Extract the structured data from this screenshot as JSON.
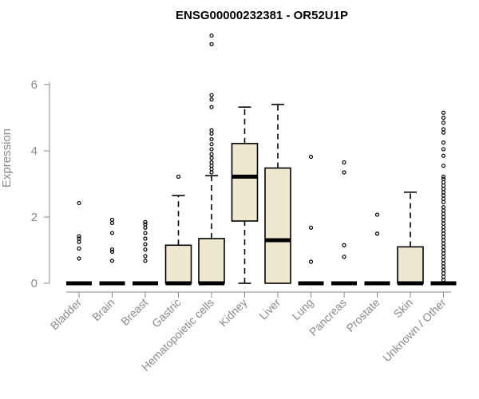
{
  "chart_data": {
    "type": "box",
    "title": "ENSG00000232381 - OR52U1P",
    "xlabel": "",
    "ylabel": "Expression",
    "ylim": [
      0,
      7.8
    ],
    "yticks": [
      "0",
      "2",
      "4",
      "6"
    ],
    "box_fill": "#efe7cf",
    "categories": [
      "Bladder",
      "Brain",
      "Breast",
      "Gastric",
      "Hematopoietic cells",
      "Kidney",
      "Liver",
      "Lung",
      "Pancreas",
      "Prostate",
      "Skin",
      "Unknown / Other"
    ],
    "boxes": [
      {
        "q1": 0,
        "median": 0,
        "q3": 0,
        "whisker_low": 0,
        "whisker_high": 0,
        "outliers": [
          0.75,
          1.05,
          1.25,
          1.35,
          1.42,
          2.42
        ]
      },
      {
        "q1": 0,
        "median": 0,
        "q3": 0,
        "whisker_low": 0,
        "whisker_high": 0,
        "outliers": [
          0.68,
          0.95,
          1.02,
          1.52,
          1.82,
          1.92
        ]
      },
      {
        "q1": 0,
        "median": 0,
        "q3": 0,
        "whisker_low": 0,
        "whisker_high": 0,
        "outliers": [
          0.68,
          0.82,
          1.02,
          1.18,
          1.35,
          1.52,
          1.68,
          1.78,
          1.85
        ]
      },
      {
        "q1": 0,
        "median": 0,
        "q3": 1.15,
        "whisker_low": 0,
        "whisker_high": 2.65,
        "outliers": [
          3.22
        ]
      },
      {
        "q1": 0,
        "median": 0,
        "q3": 1.35,
        "whisker_low": 0,
        "whisker_high": 3.25,
        "outliers": [
          3.35,
          3.45,
          3.55,
          3.65,
          3.78,
          3.9,
          4.05,
          4.2,
          4.35,
          4.52,
          4.62,
          5.32,
          5.55,
          5.68,
          7.22,
          7.48
        ]
      },
      {
        "q1": 1.88,
        "median": 3.22,
        "q3": 4.22,
        "whisker_low": 0,
        "whisker_high": 5.32,
        "outliers": []
      },
      {
        "q1": 0,
        "median": 1.3,
        "q3": 3.48,
        "whisker_low": 0,
        "whisker_high": 5.4,
        "outliers": []
      },
      {
        "q1": 0,
        "median": 0,
        "q3": 0,
        "whisker_low": 0,
        "whisker_high": 0,
        "outliers": [
          0.65,
          1.68,
          3.82
        ]
      },
      {
        "q1": 0,
        "median": 0,
        "q3": 0,
        "whisker_low": 0,
        "whisker_high": 0,
        "outliers": [
          0.8,
          1.15,
          3.35,
          3.65
        ]
      },
      {
        "q1": 0,
        "median": 0,
        "q3": 0,
        "whisker_low": 0,
        "whisker_high": 0,
        "outliers": [
          1.5,
          2.07
        ]
      },
      {
        "q1": 0,
        "median": 0,
        "q3": 1.1,
        "whisker_low": 0,
        "whisker_high": 2.75,
        "outliers": []
      },
      {
        "q1": 0,
        "median": 0,
        "q3": 0,
        "whisker_low": 0,
        "whisker_high": 0,
        "outliers": [
          0.1,
          0.2,
          0.3,
          0.4,
          0.5,
          0.6,
          0.7,
          0.8,
          0.9,
          1.0,
          1.1,
          1.2,
          1.3,
          1.4,
          1.5,
          1.6,
          1.7,
          1.8,
          1.9,
          2.0,
          2.1,
          2.2,
          2.3,
          2.45,
          2.55,
          2.65,
          2.75,
          2.85,
          2.95,
          3.05,
          3.15,
          3.22,
          3.55,
          3.85,
          4.05,
          4.25,
          4.55,
          4.65,
          4.85,
          5.0,
          5.15
        ]
      }
    ]
  }
}
